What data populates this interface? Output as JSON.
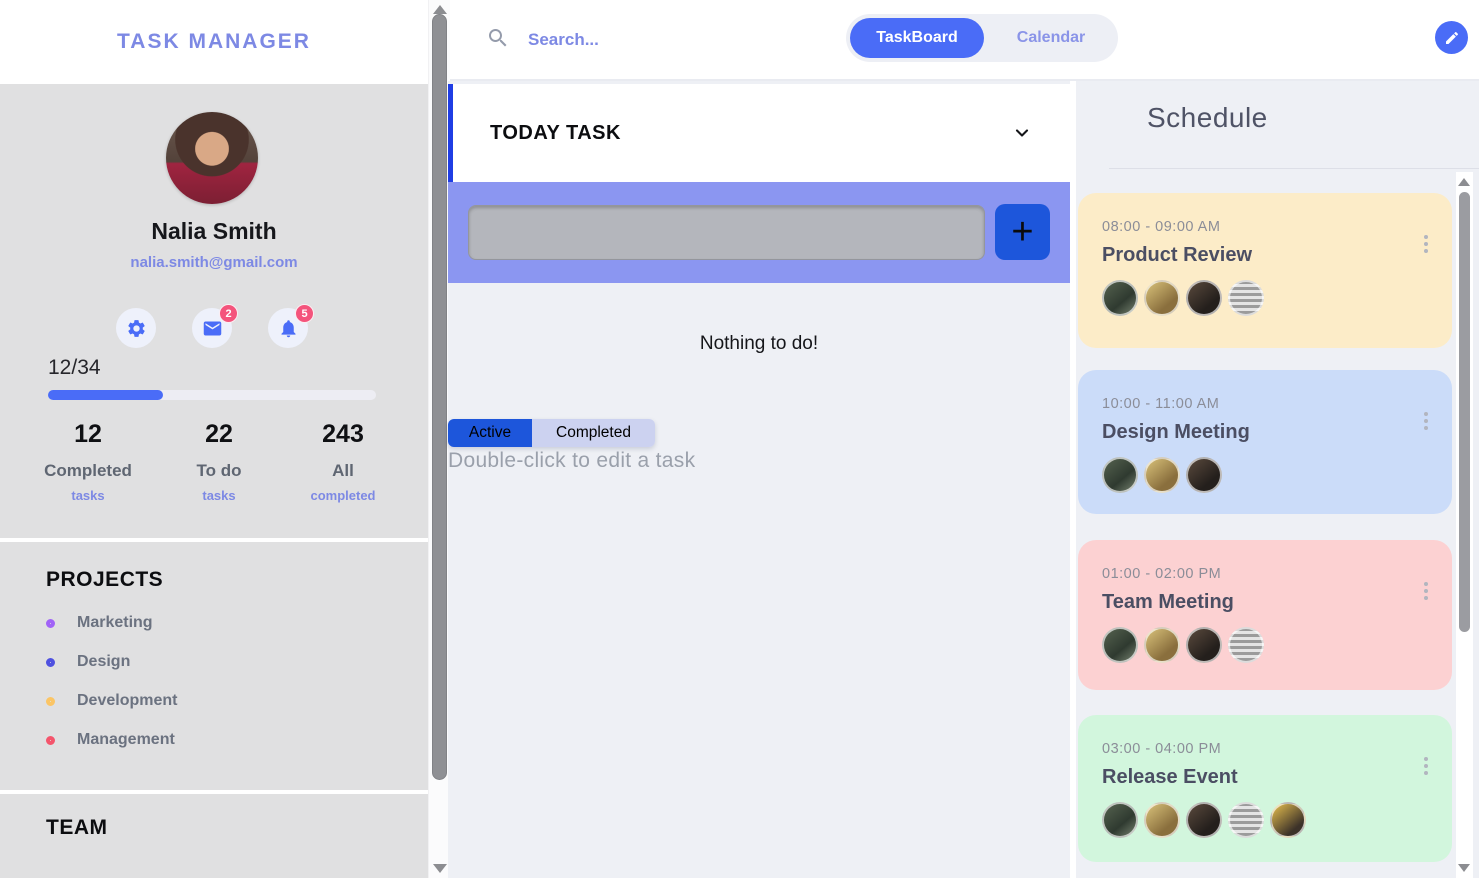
{
  "app": {
    "title": "TASK MANAGER"
  },
  "user": {
    "name": "Nalia Smith",
    "email": "nalia.smith@gmail.com"
  },
  "quick_actions": {
    "settings": {
      "icon": "gear-icon"
    },
    "messages": {
      "icon": "mail-icon",
      "badge": "2"
    },
    "notifications": {
      "icon": "bell-icon",
      "badge": "5"
    }
  },
  "progress": {
    "label": "12/34",
    "fill": "35%",
    "fill_color": "#4a6cf7"
  },
  "stats": [
    {
      "value": "12",
      "label": "Completed",
      "sublabel": "tasks"
    },
    {
      "value": "22",
      "label": "To do",
      "sublabel": "tasks"
    },
    {
      "value": "243",
      "label": "All",
      "sublabel": "completed"
    }
  ],
  "projects": {
    "heading": "PROJECTS",
    "items": [
      {
        "label": "Marketing",
        "color": "#a163f7"
      },
      {
        "label": "Design",
        "color": "#4f51e0"
      },
      {
        "label": "Development",
        "color": "#fbc565"
      },
      {
        "label": "Management",
        "color": "#f4556c"
      }
    ]
  },
  "team": {
    "heading": "TEAM"
  },
  "topbar": {
    "search_placeholder": "Search...",
    "view_tabs": [
      {
        "label": "TaskBoard",
        "active": true
      },
      {
        "label": "Calendar",
        "active": false
      }
    ]
  },
  "board": {
    "section_title": "TODAY TASK",
    "new_task_value": "",
    "add_button_label": "+",
    "empty_message": "Nothing to do!",
    "filter_tabs": [
      {
        "label": "Active",
        "active": true
      },
      {
        "label": "Completed",
        "active": false
      }
    ],
    "hint": "Double-click to edit a task"
  },
  "schedule": {
    "heading": "Schedule",
    "events": [
      {
        "time": "08:00 - 09:00 AM",
        "title": "Product Review",
        "color": "#fcecc8",
        "attendees": 4
      },
      {
        "time": "10:00 - 11:00 AM",
        "title": "Design Meeting",
        "color": "#cbdcf9",
        "attendees": 3
      },
      {
        "time": "01:00 - 02:00 PM",
        "title": "Team Meeting",
        "color": "#fcd1d2",
        "attendees": 4
      },
      {
        "time": "03:00 - 04:00 PM",
        "title": "Release Event",
        "color": "#d2f6dd",
        "attendees": 5
      }
    ]
  },
  "colors": {
    "primary_blue": "#4a6cf7",
    "deep_blue": "#1d56db",
    "accent_bar_blue": "#1f3de4",
    "band_periwinkle": "#8b96f1",
    "brand_periwinkle": "#7d89e4",
    "badge_pink": "#f4547c",
    "sidebar_gray": "#e0e0e1",
    "main_bg": "#eef0f5"
  }
}
